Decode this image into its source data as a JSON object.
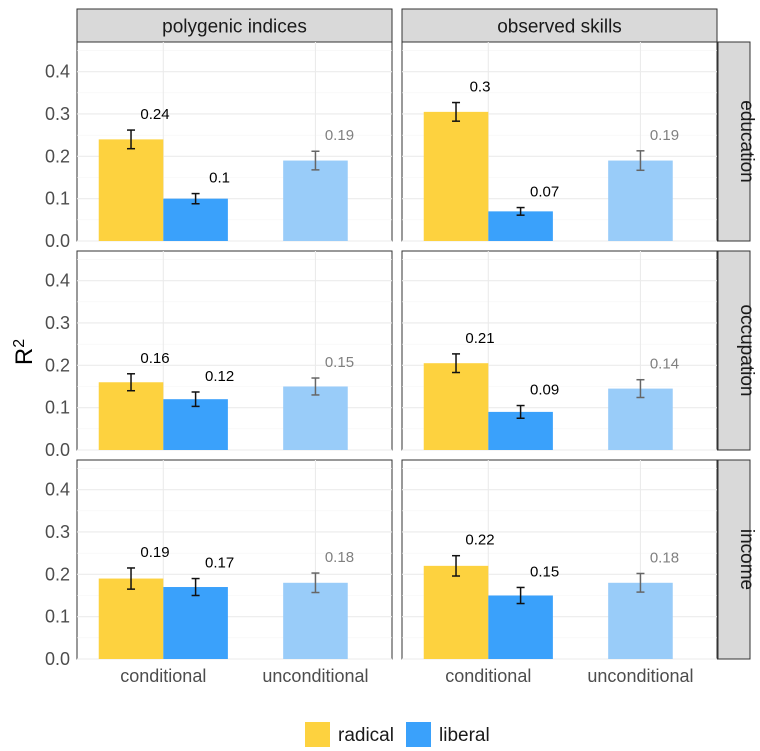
{
  "chart_data": {
    "type": "bar",
    "ylabel": "R",
    "ylabel_superscript": "2",
    "ylim": [
      0,
      0.47
    ],
    "yticks": [
      "0.0",
      "0.1",
      "0.2",
      "0.3",
      "0.4"
    ],
    "ytick_values": [
      0,
      0.1,
      0.2,
      0.3,
      0.4
    ],
    "columns": [
      "polygenic indices",
      "observed skills"
    ],
    "rows": [
      "education",
      "occupation",
      "income"
    ],
    "categories": [
      "conditional",
      "unconditional"
    ],
    "series": [
      {
        "name": "radical",
        "color": "#fdd23f"
      },
      {
        "name": "liberal",
        "color": "#3aa1fb"
      },
      {
        "name": "",
        "color": "#99ccf9"
      }
    ],
    "label_colors": {
      "conditional": "#000000",
      "unconditional": "#808080"
    },
    "legend": {
      "position": "bottom",
      "entries": [
        "radical",
        "liberal"
      ]
    },
    "grid": true,
    "panels": [
      {
        "row": "education",
        "col": "polygenic indices",
        "radical": {
          "value": 0.24,
          "err": 0.022,
          "label": "0.24"
        },
        "liberal": {
          "value": 0.1,
          "err": 0.012,
          "label": "0.1"
        },
        "unconditional": {
          "value": 0.19,
          "err": 0.022,
          "label": "0.19"
        }
      },
      {
        "row": "education",
        "col": "observed skills",
        "radical": {
          "value": 0.305,
          "err": 0.022,
          "label": "0.3"
        },
        "liberal": {
          "value": 0.07,
          "err": 0.009,
          "label": "0.07"
        },
        "unconditional": {
          "value": 0.19,
          "err": 0.023,
          "label": "0.19"
        }
      },
      {
        "row": "occupation",
        "col": "polygenic indices",
        "radical": {
          "value": 0.16,
          "err": 0.02,
          "label": "0.16"
        },
        "liberal": {
          "value": 0.12,
          "err": 0.017,
          "label": "0.12"
        },
        "unconditional": {
          "value": 0.15,
          "err": 0.02,
          "label": "0.15"
        }
      },
      {
        "row": "occupation",
        "col": "observed skills",
        "radical": {
          "value": 0.205,
          "err": 0.022,
          "label": "0.21"
        },
        "liberal": {
          "value": 0.09,
          "err": 0.015,
          "label": "0.09"
        },
        "unconditional": {
          "value": 0.145,
          "err": 0.021,
          "label": "0.14"
        }
      },
      {
        "row": "income",
        "col": "polygenic indices",
        "radical": {
          "value": 0.19,
          "err": 0.025,
          "label": "0.19"
        },
        "liberal": {
          "value": 0.17,
          "err": 0.02,
          "label": "0.17"
        },
        "unconditional": {
          "value": 0.18,
          "err": 0.023,
          "label": "0.18"
        }
      },
      {
        "row": "income",
        "col": "observed skills",
        "radical": {
          "value": 0.22,
          "err": 0.024,
          "label": "0.22"
        },
        "liberal": {
          "value": 0.15,
          "err": 0.019,
          "label": "0.15"
        },
        "unconditional": {
          "value": 0.18,
          "err": 0.022,
          "label": "0.18"
        }
      }
    ]
  }
}
